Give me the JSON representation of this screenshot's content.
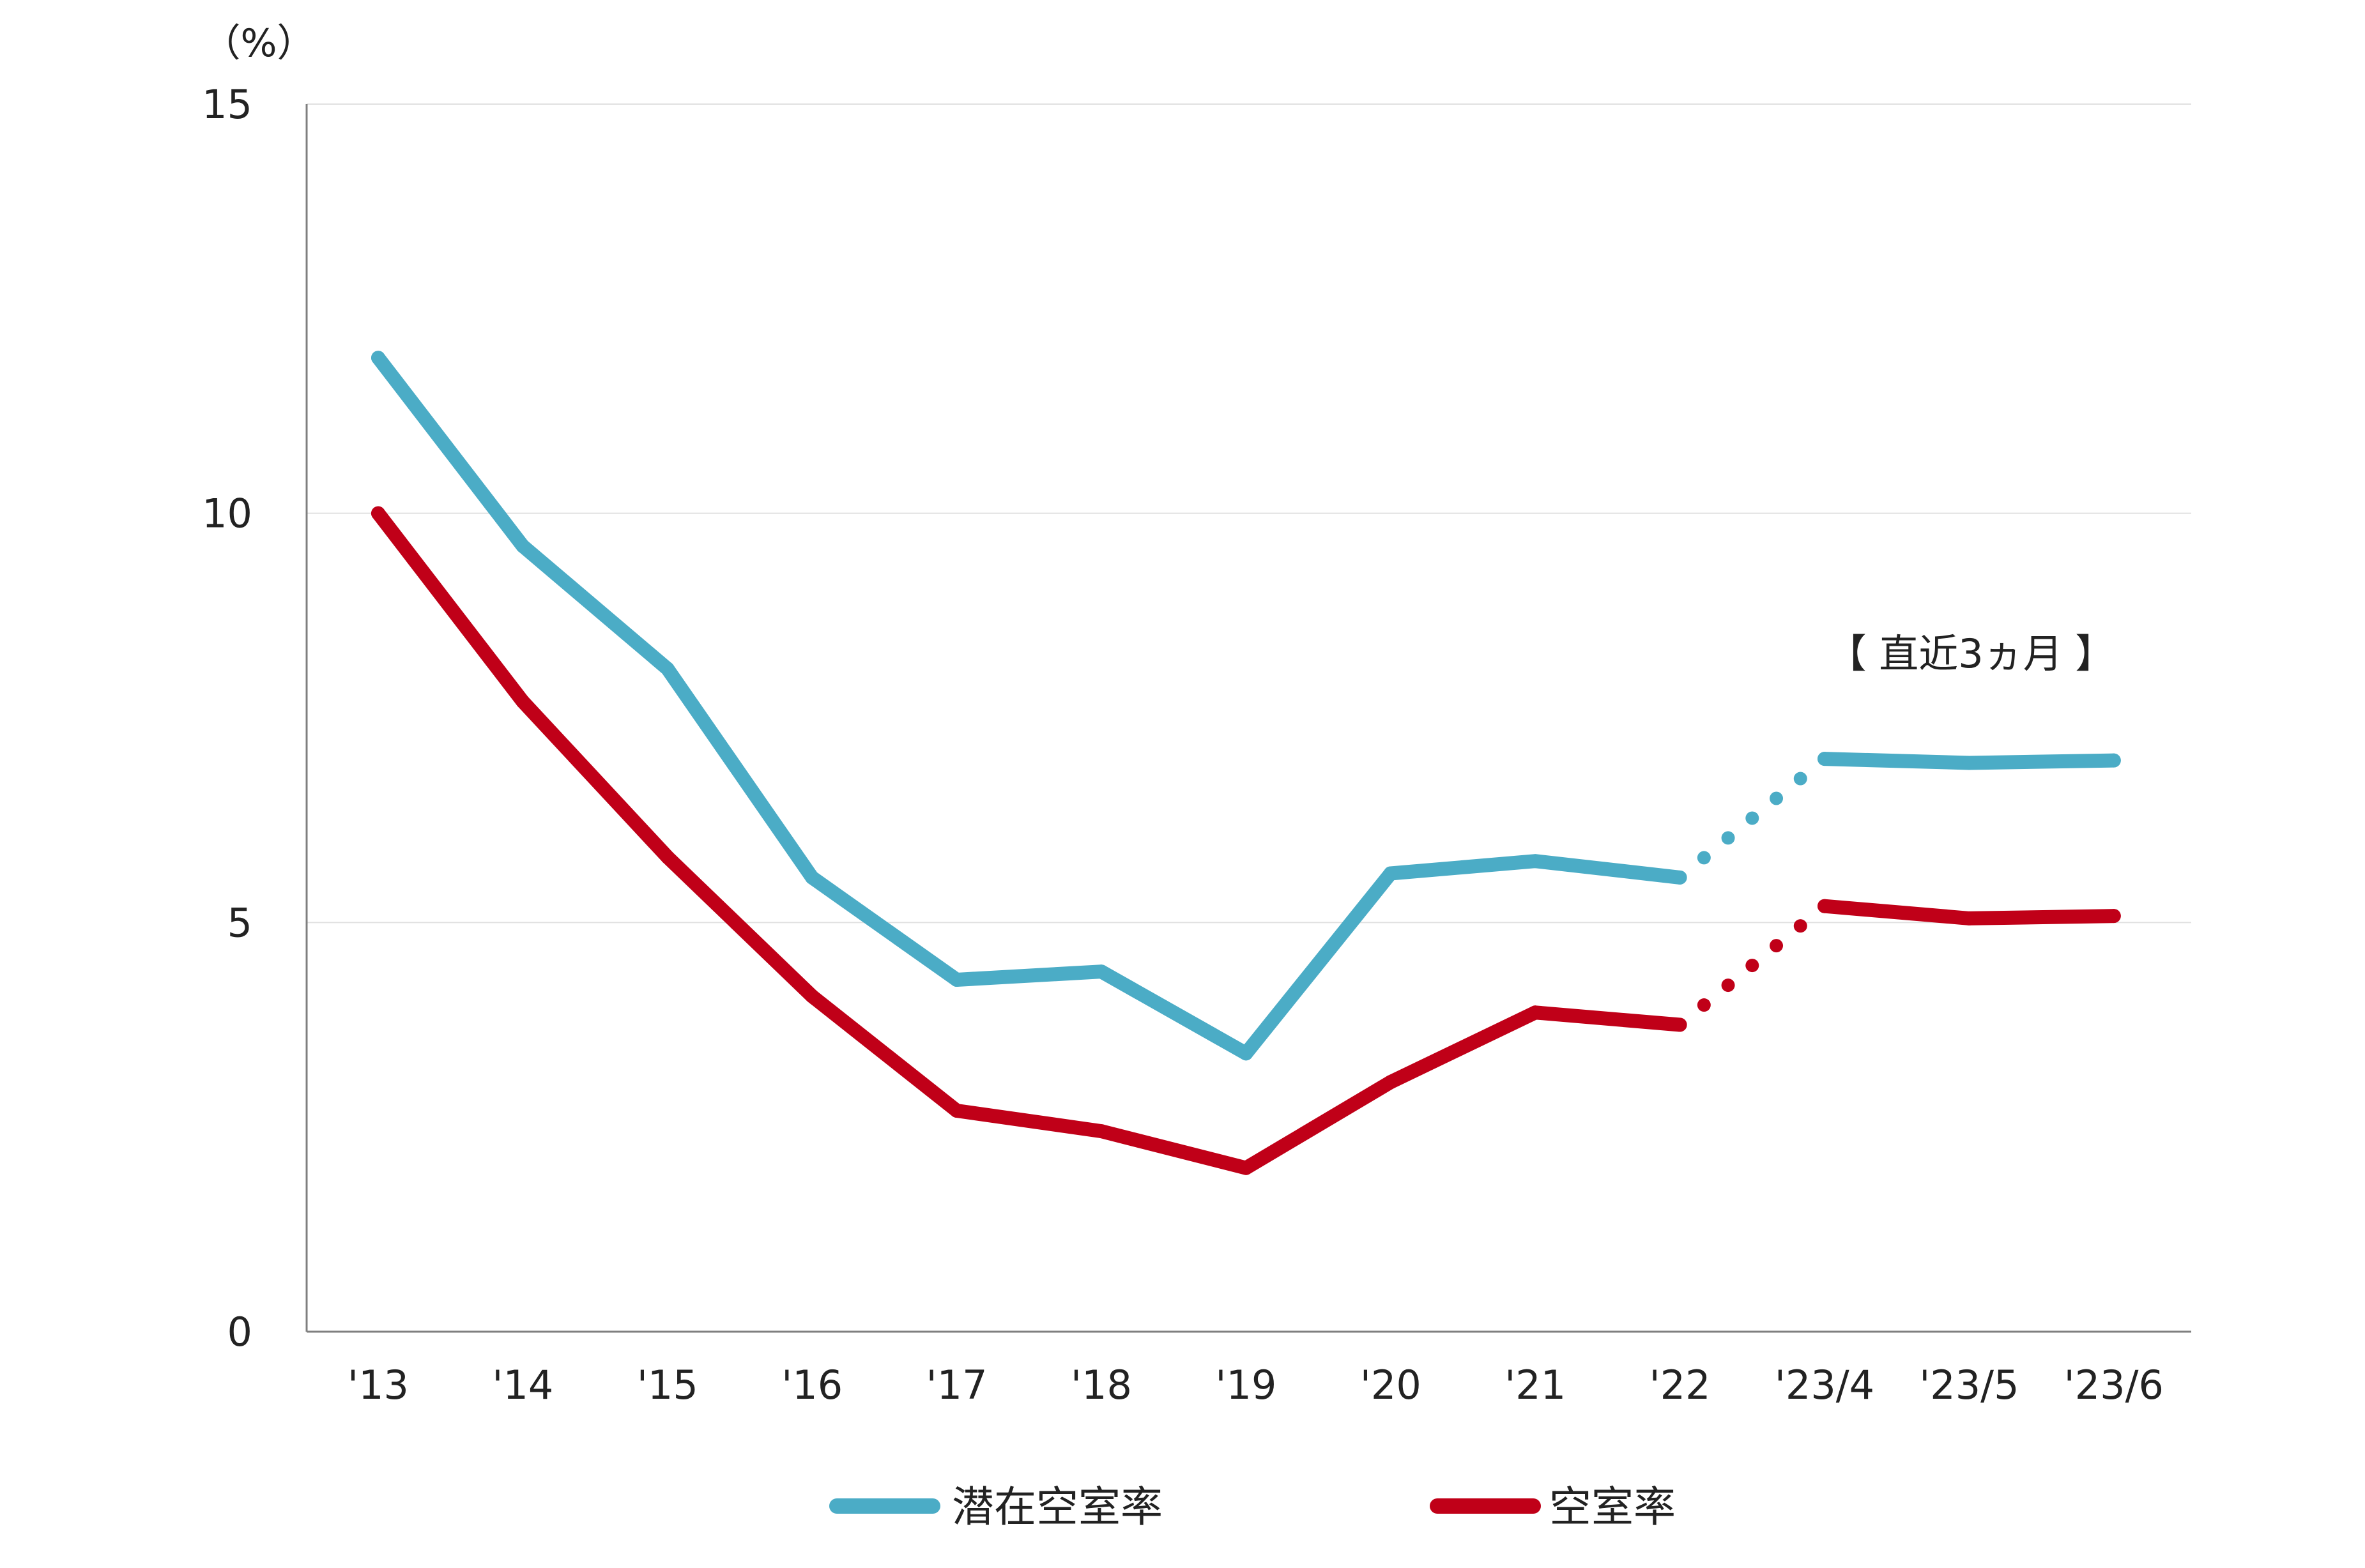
{
  "chart_data": {
    "type": "line",
    "ylabel": "（%）",
    "ylim": [
      0,
      15
    ],
    "y_ticks": [
      "0",
      "5",
      "10",
      "15"
    ],
    "categories": [
      "'13",
      "'14",
      "'15",
      "'16",
      "'17",
      "'18",
      "'19",
      "'20",
      "'21",
      "'22",
      "'23/4",
      "'23/5",
      "'23/6"
    ],
    "annotation": "【 直近3ヵ月 】",
    "grid": true,
    "legend_position": "bottom",
    "series": [
      {
        "name": "潜在空室率",
        "color": "#4bacc6",
        "values": [
          11.9,
          9.6,
          8.1,
          5.55,
          4.3,
          4.4,
          3.4,
          5.6,
          5.75,
          5.55,
          7.0,
          6.95,
          6.98
        ]
      },
      {
        "name": "空室率",
        "color": "#c00018",
        "values": [
          10.0,
          7.7,
          5.8,
          4.1,
          2.7,
          2.45,
          2.0,
          3.05,
          3.9,
          3.75,
          5.2,
          5.05,
          5.08
        ]
      }
    ]
  }
}
